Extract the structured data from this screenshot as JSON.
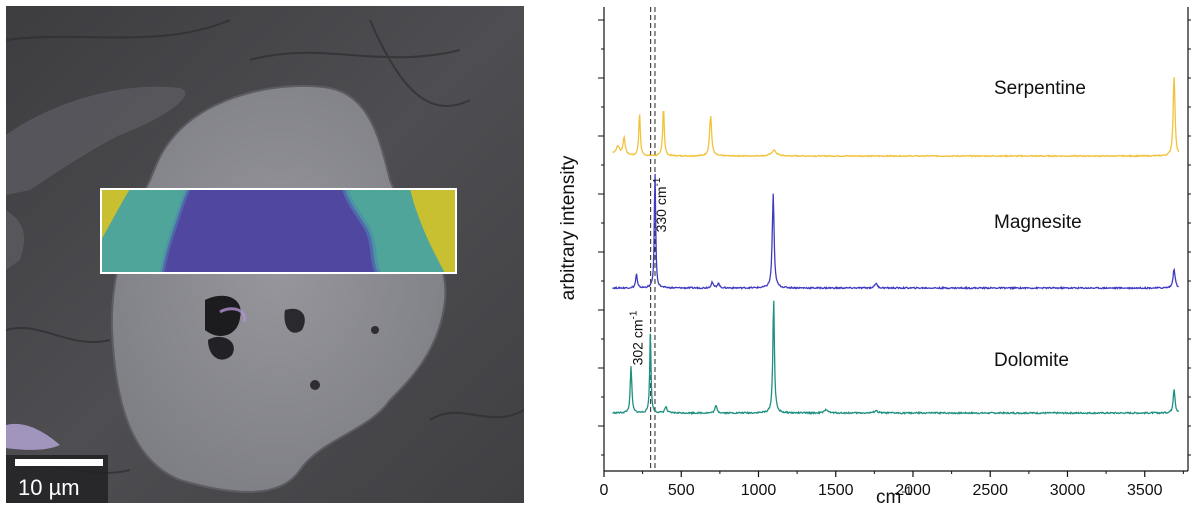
{
  "micrograph": {
    "scale_bar_label": "10 µm",
    "colors": {
      "background": "#4a4a4d",
      "grain": "#8a8a90",
      "yellow_phase": "#c8c030",
      "teal_phase": "#4fa59a",
      "blue_phase": "#5048a0"
    }
  },
  "chart_data": {
    "type": "line",
    "xlabel": "cm",
    "xlabel_superscript": "-1",
    "ylabel": "arbitrary intensity",
    "xlim": [
      0,
      3780
    ],
    "x_ticks": [
      0,
      500,
      1000,
      1500,
      2000,
      2500,
      3000,
      3500
    ],
    "grid": false,
    "reference_lines": [
      302,
      330
    ],
    "annotations": [
      {
        "text": "330 cm",
        "sup": "-1",
        "x": 330
      },
      {
        "text": "302 cm",
        "sup": "-1",
        "x": 302
      }
    ],
    "series": [
      {
        "name": "Serpentine",
        "color": "#f2c23a",
        "baseline": 0.0,
        "peaks": [
          {
            "x": 90,
            "height": 0.08,
            "width": 12
          },
          {
            "x": 130,
            "height": 0.18,
            "width": 8
          },
          {
            "x": 230,
            "height": 0.45,
            "width": 6
          },
          {
            "x": 385,
            "height": 0.52,
            "width": 6
          },
          {
            "x": 690,
            "height": 0.42,
            "width": 8
          },
          {
            "x": 1100,
            "height": 0.06,
            "width": 18
          },
          {
            "x": 3690,
            "height": 0.85,
            "width": 7
          }
        ]
      },
      {
        "name": "Magnesite",
        "color": "#3f3bbf",
        "baseline": 0.0,
        "peaks": [
          {
            "x": 210,
            "height": 0.12,
            "width": 6
          },
          {
            "x": 330,
            "height": 1.0,
            "width": 5
          },
          {
            "x": 700,
            "height": 0.05,
            "width": 8
          },
          {
            "x": 740,
            "height": 0.04,
            "width": 8
          },
          {
            "x": 1095,
            "height": 0.8,
            "width": 7
          },
          {
            "x": 1760,
            "height": 0.04,
            "width": 10
          },
          {
            "x": 3690,
            "height": 0.16,
            "width": 8
          }
        ]
      },
      {
        "name": "Dolomite",
        "color": "#1f8f7f",
        "baseline": 0.0,
        "peaks": [
          {
            "x": 175,
            "height": 0.38,
            "width": 6
          },
          {
            "x": 300,
            "height": 0.67,
            "width": 5
          },
          {
            "x": 400,
            "height": 0.05,
            "width": 8
          },
          {
            "x": 725,
            "height": 0.06,
            "width": 8
          },
          {
            "x": 1098,
            "height": 0.95,
            "width": 6
          },
          {
            "x": 1440,
            "height": 0.03,
            "width": 12
          },
          {
            "x": 1760,
            "height": 0.02,
            "width": 12
          },
          {
            "x": 3690,
            "height": 0.2,
            "width": 7
          }
        ]
      }
    ]
  }
}
